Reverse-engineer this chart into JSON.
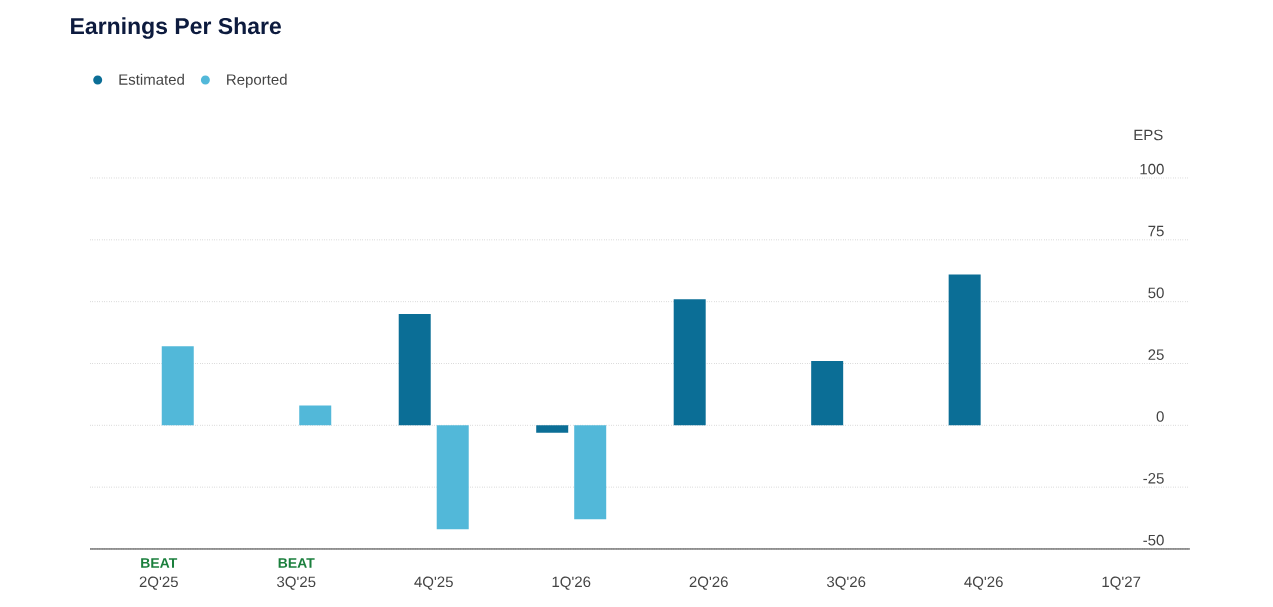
{
  "chart_data": {
    "type": "bar",
    "title": "Earnings Per Share",
    "ylabel": "EPS",
    "categories": [
      "2Q'25",
      "3Q'25",
      "4Q'25",
      "1Q'26",
      "2Q'26",
      "3Q'26",
      "4Q'26",
      "1Q'27"
    ],
    "series": [
      {
        "name": "Estimated",
        "color": "#0b6e96",
        "values": [
          null,
          null,
          45,
          -3,
          51,
          26,
          61,
          null
        ]
      },
      {
        "name": "Reported",
        "color": "#52b8d9",
        "values": [
          32,
          8,
          -42,
          -38,
          null,
          null,
          null,
          null
        ]
      }
    ],
    "annotations": [
      "BEAT",
      "BEAT"
    ],
    "ylim": [
      -50,
      100
    ],
    "yticks": [
      -50,
      -25,
      0,
      25,
      50,
      75,
      100
    ],
    "grid": "y",
    "legend": "top left"
  }
}
